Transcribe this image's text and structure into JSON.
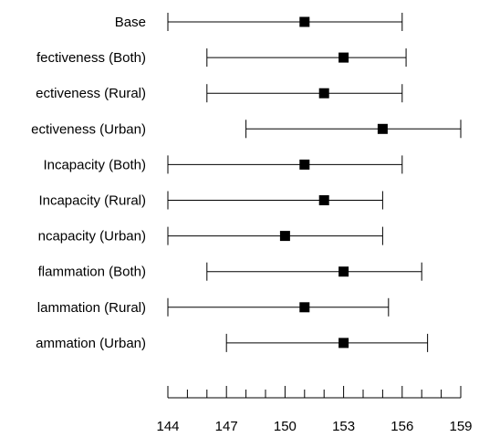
{
  "chart_data": {
    "type": "forest",
    "categories": [
      "Base",
      "fectiveness (Both)",
      "ectiveness (Rural)",
      "ectiveness (Urban)",
      "Incapacity (Both)",
      "Incapacity (Rural)",
      "ncapacity (Urban)",
      "flammation (Both)",
      "lammation (Rural)",
      "ammation (Urban)"
    ],
    "estimates": [
      151,
      153,
      152,
      155,
      151,
      152,
      150,
      153,
      151,
      153
    ],
    "lower": [
      144,
      146,
      146,
      148,
      144,
      144,
      144,
      146,
      144,
      147
    ],
    "upper": [
      156,
      156.2,
      156,
      159,
      156,
      155,
      155,
      157,
      155.3,
      157.3
    ],
    "xlim": [
      144,
      159
    ],
    "xticks": [
      144,
      147,
      150,
      153,
      156,
      159
    ],
    "xminor_step": 1,
    "grid": false,
    "title": "",
    "xlabel": "",
    "ylabel": "",
    "colors": {
      "marker": "#000000",
      "line": "#000000"
    }
  }
}
